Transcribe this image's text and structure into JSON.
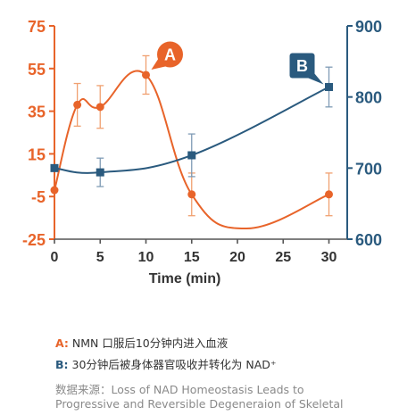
{
  "chart_data": {
    "type": "line",
    "xlabel": "Time (min)",
    "x_ticks": [
      0,
      5,
      10,
      15,
      20,
      25,
      30
    ],
    "xlim": [
      0,
      32
    ],
    "left_axis": {
      "ylim": [
        -25,
        75
      ],
      "ticks": [
        "75",
        "55",
        "35",
        "15",
        "-5",
        "-25"
      ],
      "tick_values": [
        75,
        55,
        35,
        15,
        -5,
        -25
      ]
    },
    "right_axis": {
      "ylim": [
        600,
        900
      ],
      "ticks": [
        "900",
        "800",
        "700",
        "600"
      ],
      "tick_values": [
        900,
        800,
        700,
        600
      ]
    },
    "series": [
      {
        "marker_label": "A",
        "axis": "left",
        "color": "#e8642a",
        "x": [
          0,
          2.5,
          5,
          10,
          15,
          30
        ],
        "y": [
          -2,
          38,
          37,
          52,
          -4,
          -4
        ],
        "err": [
          0,
          10,
          10,
          9,
          10,
          10
        ]
      },
      {
        "marker_label": "B",
        "axis": "right",
        "color": "#2a5a7e",
        "x": [
          0,
          5,
          15,
          30
        ],
        "y": [
          700,
          694,
          718,
          814
        ],
        "err": [
          0,
          20,
          30,
          28
        ]
      }
    ],
    "grid": false,
    "legend": "callouts"
  },
  "notes": {
    "a_key": "A:",
    "a_text": " NMN 口服后10分钟内进入血液",
    "b_key": "B:",
    "b_text": " 30分钟后被身体器官吸收并转化为 NAD⁺"
  },
  "source": {
    "line1": "数据来源：Loss of NAD Homeostasis Leads to",
    "line2": "Progressive and Reversible Degeneraion of Skeletal"
  }
}
